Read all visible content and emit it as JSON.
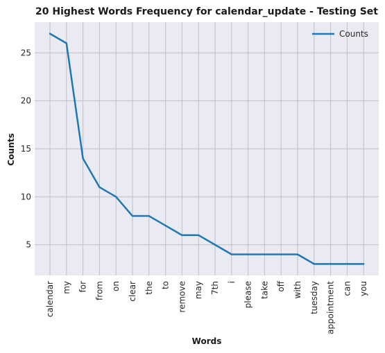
{
  "chart_data": {
    "type": "line",
    "title": "20 Highest Words Frequency for calendar_update - Testing Set",
    "xlabel": "Words",
    "ylabel": "Counts",
    "categories": [
      "calendar",
      "my",
      "for",
      "from",
      "on",
      "clear",
      "the",
      "to",
      "remove",
      "may",
      "7th",
      "i",
      "please",
      "take",
      "off",
      "with",
      "tuesday",
      "appointment",
      "can",
      "you"
    ],
    "series": [
      {
        "name": "Counts",
        "values": [
          27,
          26,
          14,
          11,
          10,
          8,
          8,
          7,
          6,
          6,
          5,
          4,
          4,
          4,
          4,
          4,
          3,
          3,
          3,
          3
        ],
        "color": "#1f77b4"
      }
    ],
    "ylim": [
      1.8,
      28.2
    ],
    "yticks": [
      5,
      10,
      15,
      20,
      25
    ],
    "grid": true,
    "legend_position": "top-right",
    "background": "#eaeaf2",
    "grid_color": "#bfbfc4"
  }
}
